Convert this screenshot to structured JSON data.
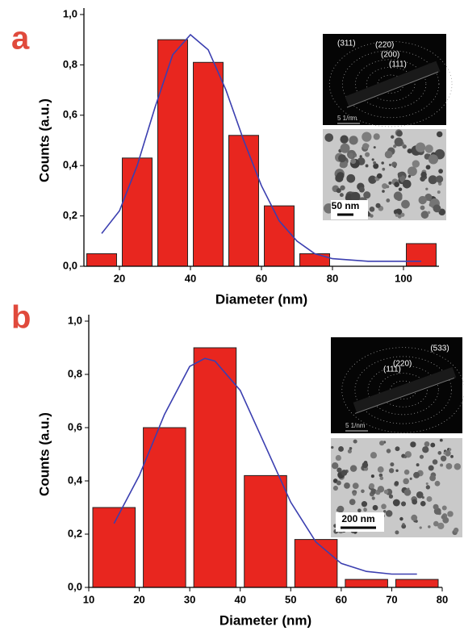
{
  "chart_data": [
    {
      "type": "histogram",
      "panel_label": "a",
      "xlabel": "Diameter (nm)",
      "ylabel": "Counts (a.u.)",
      "color": "#e8261f",
      "bins": [
        10,
        20,
        30,
        40,
        50,
        60,
        70,
        80,
        90,
        100,
        110
      ],
      "counts": [
        0.05,
        0.43,
        0.9,
        0.81,
        0.52,
        0.24,
        0.05,
        0,
        0,
        0.09
      ],
      "curve": {
        "color": "#3b3fb0",
        "x": [
          15,
          20,
          25,
          30,
          35,
          40,
          45,
          50,
          55,
          60,
          65,
          70,
          75,
          80,
          85,
          90,
          95,
          100,
          105
        ],
        "y": [
          0.13,
          0.22,
          0.4,
          0.63,
          0.84,
          0.92,
          0.86,
          0.7,
          0.5,
          0.32,
          0.18,
          0.1,
          0.05,
          0.03,
          0.025,
          0.02,
          0.02,
          0.02,
          0.02
        ]
      },
      "xlim": [
        10,
        110
      ],
      "xticks": [
        20,
        40,
        60,
        80,
        100
      ],
      "ylim": [
        0,
        1
      ],
      "yticks": [
        {
          "value": 0,
          "label": "0,0"
        },
        {
          "value": 0.2,
          "label": "0,2"
        },
        {
          "value": 0.4,
          "label": "0,4"
        },
        {
          "value": 0.6,
          "label": "0,6"
        },
        {
          "value": 0.8,
          "label": "0,8"
        },
        {
          "value": 1,
          "label": "1,0"
        }
      ],
      "diffraction_labels": [
        "(311)",
        "(220)",
        "(200)",
        "(111)"
      ],
      "diffraction_scale": "5 1/nm",
      "image_scale": "50 nm"
    },
    {
      "type": "histogram",
      "panel_label": "b",
      "xlabel": "Diameter (nm)",
      "ylabel": "Counts (a.u.)",
      "color": "#e8261f",
      "bins": [
        10,
        20,
        30,
        40,
        50,
        60,
        70,
        80
      ],
      "counts": [
        0.3,
        0.6,
        0.9,
        0.42,
        0.18,
        0.03,
        0.03
      ],
      "curve": {
        "color": "#3b3fb0",
        "x": [
          15,
          20,
          25,
          30,
          33,
          35,
          40,
          45,
          50,
          55,
          60,
          65,
          70,
          75
        ],
        "y": [
          0.24,
          0.42,
          0.65,
          0.83,
          0.86,
          0.85,
          0.74,
          0.53,
          0.32,
          0.17,
          0.09,
          0.06,
          0.05,
          0.05
        ]
      },
      "xlim": [
        10,
        80
      ],
      "xticks": [
        10,
        20,
        30,
        40,
        50,
        60,
        70,
        80
      ],
      "ylim": [
        0,
        1
      ],
      "yticks": [
        {
          "value": 0,
          "label": "0,0"
        },
        {
          "value": 0.2,
          "label": "0,2"
        },
        {
          "value": 0.4,
          "label": "0,4"
        },
        {
          "value": 0.6,
          "label": "0,6"
        },
        {
          "value": 0.8,
          "label": "0,8"
        },
        {
          "value": 1,
          "label": "1,0"
        }
      ],
      "diffraction_labels": [
        "(533)",
        "(220)",
        "(111)"
      ],
      "diffraction_scale": "5 1/nm",
      "image_scale": "200 nm"
    }
  ]
}
